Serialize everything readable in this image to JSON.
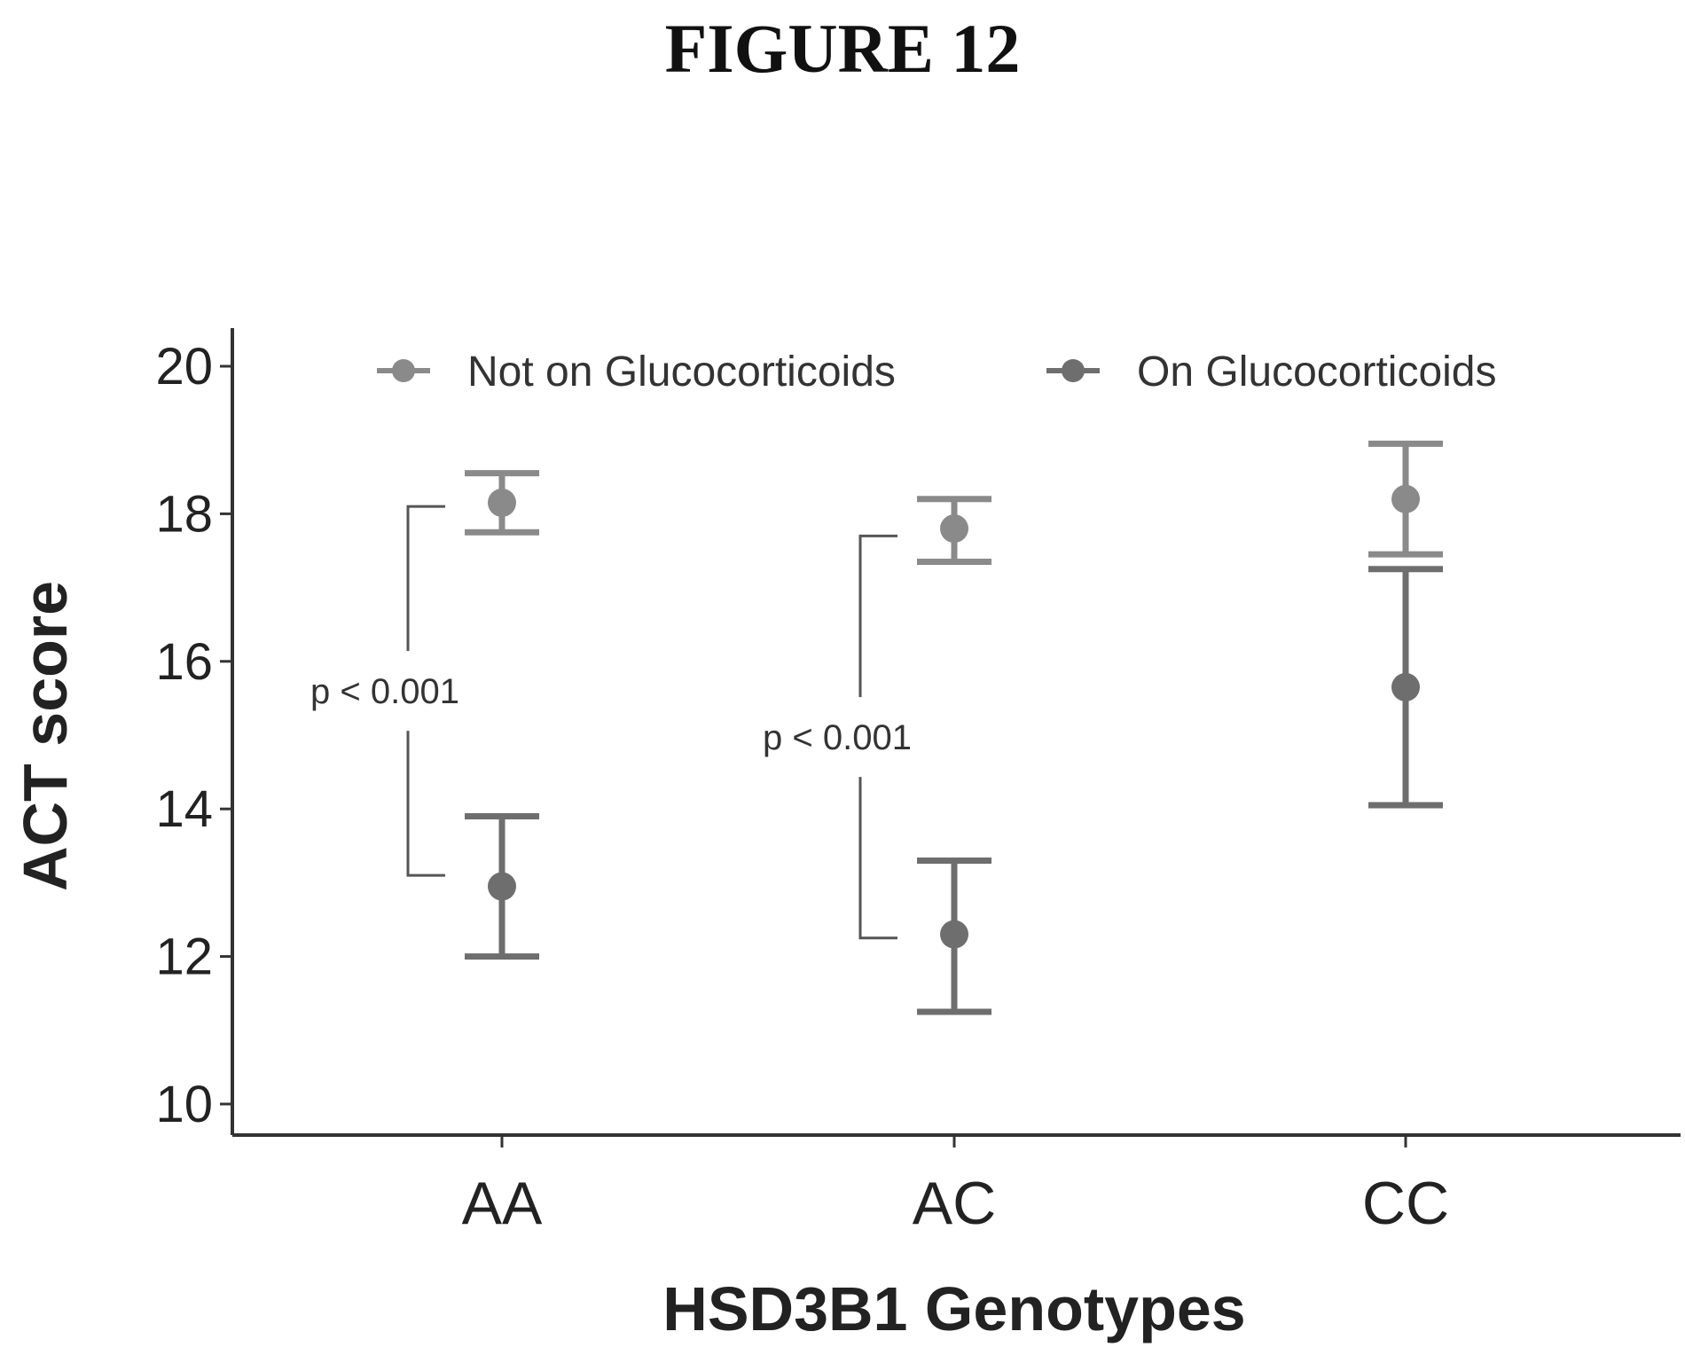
{
  "figure_title": "FIGURE 12",
  "chart_data": {
    "type": "scatter",
    "subtype": "point-with-error-bars",
    "categories": [
      "AA",
      "AC",
      "CC"
    ],
    "xlabel": "HSD3B1 Genotypes",
    "ylabel": "ACT score",
    "ylim": [
      9.5,
      20.5
    ],
    "yticks": [
      10,
      12,
      14,
      16,
      18,
      20
    ],
    "grid": false,
    "legend_position": "top",
    "series": [
      {
        "name": "Not on Glucocorticoids",
        "color": "#8a8a8a",
        "values": [
          18.15,
          17.8,
          18.2
        ],
        "lower": [
          17.75,
          17.35,
          17.45
        ],
        "upper": [
          18.55,
          18.2,
          18.95
        ]
      },
      {
        "name": "On Glucocorticoids",
        "color": "#6e6e6e",
        "values": [
          12.95,
          12.3,
          15.65
        ],
        "lower": [
          12.0,
          11.25,
          14.05
        ],
        "upper": [
          13.9,
          13.3,
          17.25
        ]
      }
    ],
    "annotations": [
      {
        "text": "p < 0.001",
        "category": "AA",
        "from": 18.1,
        "to": 13.1
      },
      {
        "text": "p < 0.001",
        "category": "AC",
        "from": 17.7,
        "to": 12.25
      }
    ]
  }
}
